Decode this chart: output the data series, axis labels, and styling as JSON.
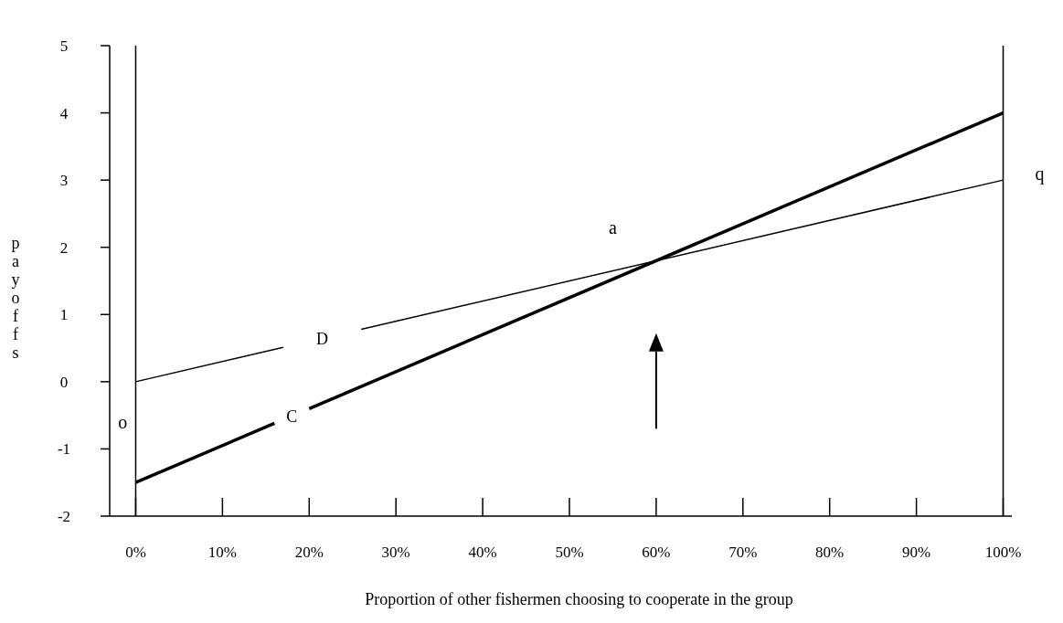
{
  "chart_data": {
    "type": "line",
    "xlabel": "Proportion of other fishermen choosing to cooperate in the group",
    "ylabel": "payoffs",
    "xlim": [
      -3,
      101
    ],
    "ylim": [
      -2,
      5
    ],
    "xticks": [
      {
        "value": 0,
        "label": "0%"
      },
      {
        "value": 10,
        "label": "10%"
      },
      {
        "value": 20,
        "label": "20%"
      },
      {
        "value": 30,
        "label": "30%"
      },
      {
        "value": 40,
        "label": "40%"
      },
      {
        "value": 50,
        "label": "50%"
      },
      {
        "value": 60,
        "label": "60%"
      },
      {
        "value": 70,
        "label": "70%"
      },
      {
        "value": 80,
        "label": "80%"
      },
      {
        "value": 90,
        "label": "90%"
      },
      {
        "value": 100,
        "label": "100%"
      }
    ],
    "yticks": [
      -2,
      -1,
      0,
      1,
      2,
      3,
      4,
      5
    ],
    "series": [
      {
        "name": "D",
        "color": "#000000",
        "x": [
          0,
          17,
          21.5,
          26,
          100
        ],
        "values": [
          0,
          0.51,
          null,
          0.78,
          3
        ]
      },
      {
        "name": "C",
        "color": "#000000",
        "x": [
          0,
          16,
          18,
          20,
          100
        ],
        "values": [
          -1.5,
          -0.62,
          null,
          -0.4,
          4
        ]
      }
    ],
    "ref_lines": [
      {
        "axis": "x",
        "value": 0,
        "label": null,
        "color": "#000000"
      },
      {
        "axis": "x",
        "value": 100,
        "label": null,
        "color": "#000000"
      }
    ],
    "annotations": [
      "a",
      "o",
      "q"
    ],
    "grid": false,
    "marker": "none",
    "line_style": "solid"
  }
}
